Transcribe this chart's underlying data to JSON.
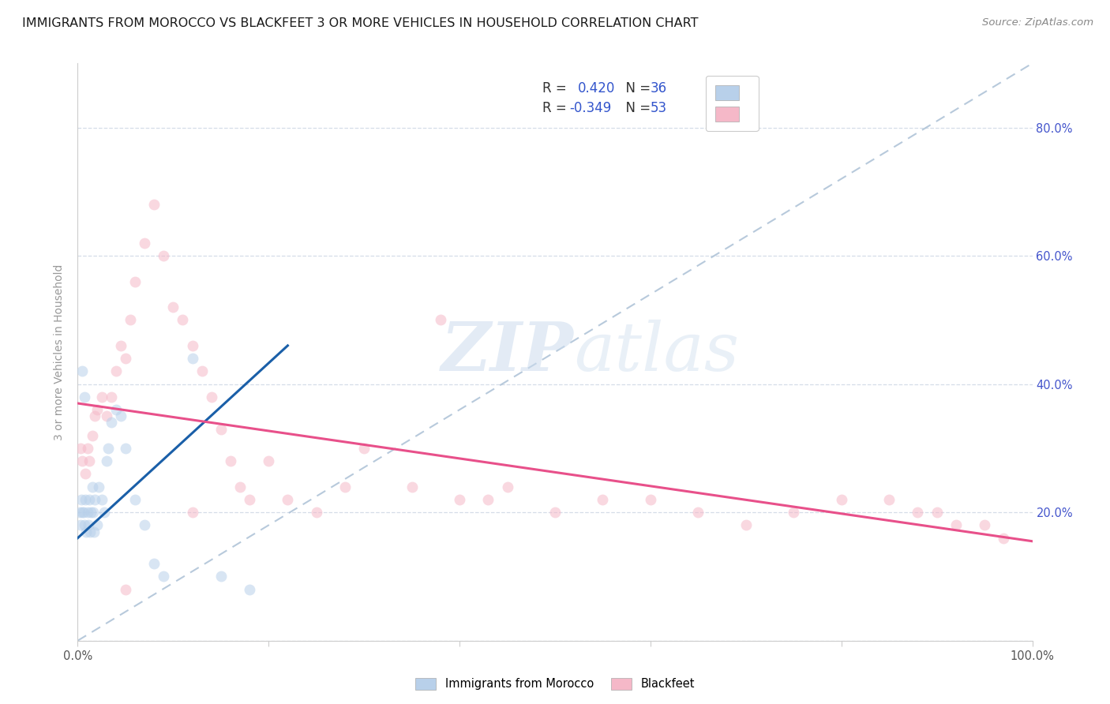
{
  "title": "IMMIGRANTS FROM MOROCCO VS BLACKFEET 3 OR MORE VEHICLES IN HOUSEHOLD CORRELATION CHART",
  "source": "Source: ZipAtlas.com",
  "ylabel": "3 or more Vehicles in Household",
  "watermark_zip": "ZIP",
  "watermark_atlas": "atlas",
  "R_morocco": 0.42,
  "N_morocco": 36,
  "R_blackfeet": -0.349,
  "N_blackfeet": 53,
  "morocco_color": "#b8d0ea",
  "morocco_line_color": "#1a5fa8",
  "blackfeet_color": "#f5b8c8",
  "blackfeet_line_color": "#e8508a",
  "diagonal_color": "#b0c4d8",
  "title_fontsize": 11.5,
  "label_fontsize": 10,
  "tick_fontsize": 10.5,
  "source_fontsize": 9.5,
  "legend_fontsize": 12,
  "marker_size": 100,
  "marker_alpha": 0.55,
  "background_color": "#ffffff",
  "grid_color": "#d5dde8",
  "right_tick_color": "#4455cc",
  "ylabel_color": "#999999",
  "legend_R_color": "#3355cc",
  "legend_N_color": "#222222",
  "morocco_x": [
    0.002,
    0.003,
    0.004,
    0.005,
    0.006,
    0.007,
    0.008,
    0.009,
    0.01,
    0.011,
    0.012,
    0.013,
    0.014,
    0.015,
    0.016,
    0.017,
    0.018,
    0.02,
    0.022,
    0.025,
    0.028,
    0.03,
    0.032,
    0.035,
    0.04,
    0.045,
    0.05,
    0.06,
    0.07,
    0.08,
    0.09,
    0.12,
    0.15,
    0.18,
    0.005,
    0.007
  ],
  "morocco_y": [
    0.2,
    0.18,
    0.22,
    0.42,
    0.2,
    0.18,
    0.22,
    0.17,
    0.2,
    0.18,
    0.22,
    0.17,
    0.2,
    0.24,
    0.2,
    0.17,
    0.22,
    0.18,
    0.24,
    0.22,
    0.2,
    0.28,
    0.3,
    0.34,
    0.36,
    0.35,
    0.3,
    0.22,
    0.18,
    0.12,
    0.1,
    0.44,
    0.1,
    0.08,
    0.2,
    0.38
  ],
  "blackfeet_x": [
    0.003,
    0.005,
    0.008,
    0.01,
    0.012,
    0.015,
    0.018,
    0.02,
    0.025,
    0.03,
    0.035,
    0.04,
    0.045,
    0.05,
    0.055,
    0.06,
    0.07,
    0.08,
    0.09,
    0.1,
    0.11,
    0.12,
    0.13,
    0.14,
    0.15,
    0.16,
    0.17,
    0.18,
    0.2,
    0.22,
    0.25,
    0.28,
    0.3,
    0.35,
    0.38,
    0.4,
    0.43,
    0.45,
    0.5,
    0.55,
    0.6,
    0.65,
    0.7,
    0.75,
    0.8,
    0.85,
    0.88,
    0.9,
    0.92,
    0.95,
    0.97,
    0.05,
    0.12
  ],
  "blackfeet_y": [
    0.3,
    0.28,
    0.26,
    0.3,
    0.28,
    0.32,
    0.35,
    0.36,
    0.38,
    0.35,
    0.38,
    0.42,
    0.46,
    0.44,
    0.5,
    0.56,
    0.62,
    0.68,
    0.6,
    0.52,
    0.5,
    0.46,
    0.42,
    0.38,
    0.33,
    0.28,
    0.24,
    0.22,
    0.28,
    0.22,
    0.2,
    0.24,
    0.3,
    0.24,
    0.5,
    0.22,
    0.22,
    0.24,
    0.2,
    0.22,
    0.22,
    0.2,
    0.18,
    0.2,
    0.22,
    0.22,
    0.2,
    0.2,
    0.18,
    0.18,
    0.16,
    0.08,
    0.2
  ],
  "morocco_line_x": [
    0.0,
    0.22
  ],
  "morocco_line_y": [
    0.16,
    0.46
  ],
  "blackfeet_line_x": [
    0.0,
    1.0
  ],
  "blackfeet_line_y": [
    0.37,
    0.155
  ],
  "xlim": [
    0,
    1
  ],
  "ylim": [
    0,
    0.9
  ],
  "ytick_positions": [
    0.0,
    0.2,
    0.4,
    0.6,
    0.8
  ],
  "xtick_positions": [
    0.0,
    0.2,
    0.4,
    0.6,
    0.8,
    1.0
  ]
}
